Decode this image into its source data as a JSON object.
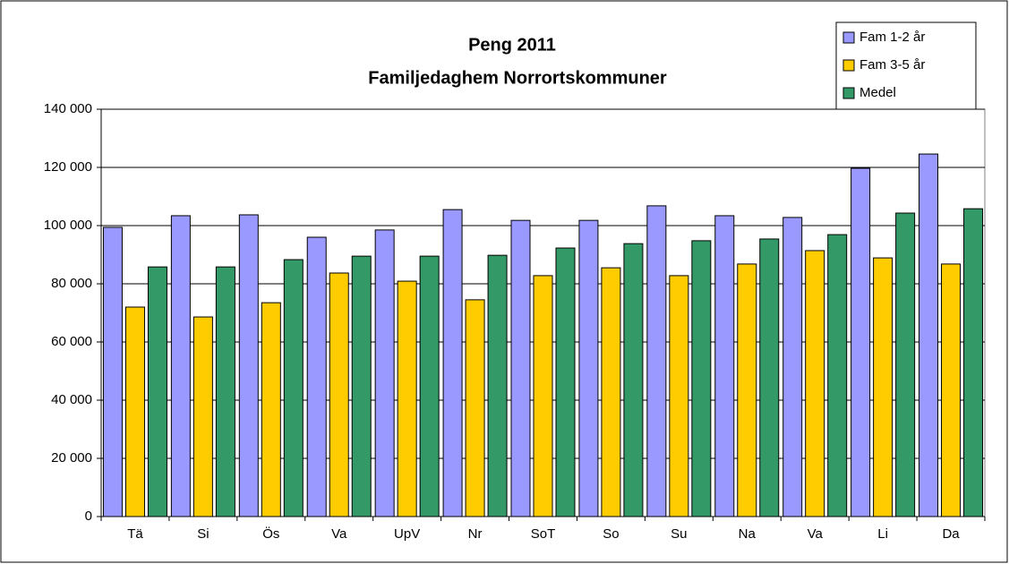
{
  "chart_data": {
    "type": "bar",
    "title": "Peng 2011",
    "subtitle": "Familjedaghem Norrortskommuner",
    "categories": [
      "Tä",
      "Si",
      "Ös",
      "Va",
      "UpV",
      "Nr",
      "SoT",
      "So",
      "Su",
      "Na",
      "Va",
      "Li",
      "Da"
    ],
    "series": [
      {
        "name": "Fam 1-2 år",
        "color": "#9999ff",
        "values": [
          99400,
          103400,
          103700,
          96000,
          98500,
          105500,
          101800,
          101800,
          106800,
          103400,
          102800,
          119700,
          124600
        ]
      },
      {
        "name": "Fam 3-5 år",
        "color": "#ffcc00",
        "values": [
          72000,
          68600,
          73500,
          83700,
          80900,
          74500,
          82800,
          85500,
          82800,
          86800,
          91400,
          88900,
          86800
        ]
      },
      {
        "name": "Medel",
        "color": "#339966",
        "values": [
          85800,
          85800,
          88300,
          89500,
          89500,
          89800,
          92300,
          93800,
          94800,
          95400,
          96900,
          104300,
          105800
        ]
      }
    ],
    "ylim": [
      0,
      140000
    ],
    "yticks": [
      0,
      {
        "value": 20000,
        "label": "20 000"
      },
      {
        "value": 40000,
        "label": "40 000"
      },
      {
        "value": 60000,
        "label": "60 000"
      },
      {
        "value": 80000,
        "label": "80 000"
      },
      {
        "value": 100000,
        "label": "100 000"
      },
      {
        "value": 120000,
        "label": "120 000"
      },
      {
        "value": 140000,
        "label": "140 000"
      }
    ],
    "grid": true,
    "legend": "top-right"
  }
}
